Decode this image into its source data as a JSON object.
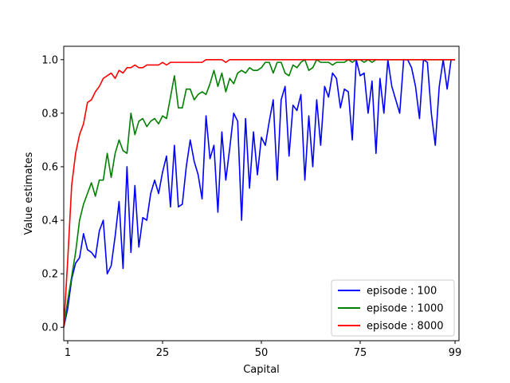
{
  "chart_data": {
    "type": "line",
    "title": "",
    "xlabel": "Capital",
    "ylabel": "Value estimates",
    "xlim": [
      0,
      100
    ],
    "ylim": [
      -0.05,
      1.05
    ],
    "xticks": [
      1,
      25,
      50,
      75,
      99
    ],
    "yticks": [
      0.0,
      0.2,
      0.4,
      0.6,
      0.8,
      1.0
    ],
    "ytick_labels": [
      "0.0",
      "0.2",
      "0.4",
      "0.6",
      "0.8",
      "1.0"
    ],
    "grid": false,
    "legend": "bottom-right",
    "series": [
      {
        "name": "episode : 100",
        "color": "#0000ff",
        "x": [
          0,
          1,
          2,
          3,
          4,
          5,
          6,
          7,
          8,
          9,
          10,
          11,
          12,
          13,
          14,
          15,
          16,
          17,
          18,
          19,
          20,
          21,
          22,
          23,
          24,
          25,
          26,
          27,
          28,
          29,
          30,
          31,
          32,
          33,
          34,
          35,
          36,
          37,
          38,
          39,
          40,
          41,
          42,
          43,
          44,
          45,
          46,
          47,
          48,
          49,
          50,
          51,
          52,
          53,
          54,
          55,
          56,
          57,
          58,
          59,
          60,
          61,
          62,
          63,
          64,
          65,
          66,
          67,
          68,
          69,
          70,
          71,
          72,
          73,
          74,
          75,
          76,
          77,
          78,
          79,
          80,
          81,
          82,
          83,
          84,
          85,
          86,
          87,
          88,
          89,
          90,
          91,
          92,
          93,
          94,
          95,
          96,
          97,
          98,
          99
        ],
        "y": [
          0.0,
          0.07,
          0.18,
          0.24,
          0.26,
          0.35,
          0.29,
          0.28,
          0.26,
          0.36,
          0.4,
          0.2,
          0.23,
          0.34,
          0.47,
          0.22,
          0.6,
          0.28,
          0.53,
          0.3,
          0.41,
          0.4,
          0.5,
          0.55,
          0.5,
          0.58,
          0.64,
          0.45,
          0.68,
          0.45,
          0.46,
          0.6,
          0.7,
          0.62,
          0.57,
          0.48,
          0.79,
          0.63,
          0.68,
          0.43,
          0.73,
          0.55,
          0.67,
          0.8,
          0.77,
          0.4,
          0.78,
          0.52,
          0.73,
          0.57,
          0.71,
          0.68,
          0.77,
          0.85,
          0.55,
          0.85,
          0.9,
          0.64,
          0.83,
          0.81,
          0.87,
          0.55,
          0.79,
          0.6,
          0.85,
          0.68,
          0.9,
          0.86,
          0.95,
          0.93,
          0.82,
          0.89,
          0.88,
          0.7,
          1.0,
          0.94,
          0.95,
          0.8,
          0.92,
          0.65,
          0.93,
          0.8,
          1.0,
          0.9,
          0.85,
          0.8,
          1.0,
          1.0,
          0.97,
          0.9,
          0.78,
          1.0,
          0.99,
          0.8,
          0.68,
          0.9,
          1.0,
          0.89,
          1.0,
          1.0
        ]
      },
      {
        "name": "episode : 1000",
        "color": "#008000",
        "x": [
          0,
          1,
          2,
          3,
          4,
          5,
          6,
          7,
          8,
          9,
          10,
          11,
          12,
          13,
          14,
          15,
          16,
          17,
          18,
          19,
          20,
          21,
          22,
          23,
          24,
          25,
          26,
          27,
          28,
          29,
          30,
          31,
          32,
          33,
          34,
          35,
          36,
          37,
          38,
          39,
          40,
          41,
          42,
          43,
          44,
          45,
          46,
          47,
          48,
          49,
          50,
          51,
          52,
          53,
          54,
          55,
          56,
          57,
          58,
          59,
          60,
          61,
          62,
          63,
          64,
          65,
          66,
          67,
          68,
          69,
          70,
          71,
          72,
          73,
          74,
          75,
          76,
          77,
          78,
          79,
          80,
          81,
          82,
          83,
          84,
          85,
          86,
          87,
          88,
          89,
          90,
          91,
          92,
          93,
          94,
          95,
          96,
          97,
          98,
          99
        ],
        "y": [
          0.0,
          0.1,
          0.19,
          0.28,
          0.4,
          0.46,
          0.5,
          0.54,
          0.49,
          0.55,
          0.55,
          0.65,
          0.56,
          0.65,
          0.7,
          0.66,
          0.65,
          0.8,
          0.72,
          0.77,
          0.78,
          0.75,
          0.77,
          0.78,
          0.76,
          0.79,
          0.78,
          0.86,
          0.94,
          0.82,
          0.82,
          0.89,
          0.89,
          0.85,
          0.87,
          0.88,
          0.87,
          0.91,
          0.96,
          0.9,
          0.95,
          0.88,
          0.93,
          0.91,
          0.95,
          0.96,
          0.95,
          0.97,
          0.96,
          0.96,
          0.97,
          0.99,
          0.99,
          0.95,
          0.99,
          0.99,
          0.95,
          0.94,
          0.98,
          0.97,
          0.99,
          1.0,
          0.96,
          0.97,
          1.0,
          0.99,
          0.99,
          0.99,
          0.98,
          0.99,
          0.99,
          0.99,
          1.0,
          0.99,
          1.0,
          1.0,
          0.99,
          1.0,
          0.99,
          1.0,
          1.0,
          1.0,
          1.0,
          1.0,
          1.0,
          1.0,
          1.0,
          1.0,
          1.0,
          1.0,
          1.0,
          1.0,
          1.0,
          1.0,
          1.0,
          1.0,
          1.0,
          1.0,
          1.0,
          1.0
        ]
      },
      {
        "name": "episode : 8000",
        "color": "#ff0000",
        "x": [
          0,
          1,
          2,
          3,
          4,
          5,
          6,
          7,
          8,
          9,
          10,
          11,
          12,
          13,
          14,
          15,
          16,
          17,
          18,
          19,
          20,
          21,
          22,
          23,
          24,
          25,
          26,
          27,
          28,
          29,
          30,
          31,
          32,
          33,
          34,
          35,
          36,
          37,
          38,
          39,
          40,
          41,
          42,
          43,
          44,
          45,
          46,
          47,
          48,
          49,
          50,
          51,
          52,
          53,
          54,
          55,
          56,
          57,
          58,
          59,
          60,
          61,
          62,
          63,
          64,
          65,
          66,
          67,
          68,
          69,
          70,
          71,
          72,
          73,
          74,
          75,
          76,
          77,
          78,
          79,
          80,
          81,
          82,
          83,
          84,
          85,
          86,
          87,
          88,
          89,
          90,
          91,
          92,
          93,
          94,
          95,
          96,
          97,
          98,
          99
        ],
        "y": [
          0.0,
          0.25,
          0.53,
          0.65,
          0.72,
          0.76,
          0.84,
          0.85,
          0.88,
          0.9,
          0.93,
          0.94,
          0.95,
          0.93,
          0.96,
          0.95,
          0.97,
          0.97,
          0.98,
          0.97,
          0.97,
          0.98,
          0.98,
          0.98,
          0.98,
          0.99,
          0.98,
          0.99,
          0.99,
          0.99,
          0.99,
          0.99,
          0.99,
          0.99,
          0.99,
          0.99,
          1.0,
          1.0,
          1.0,
          1.0,
          1.0,
          0.99,
          1.0,
          1.0,
          1.0,
          1.0,
          1.0,
          1.0,
          1.0,
          1.0,
          1.0,
          1.0,
          1.0,
          1.0,
          1.0,
          1.0,
          1.0,
          1.0,
          1.0,
          1.0,
          1.0,
          1.0,
          1.0,
          1.0,
          1.0,
          1.0,
          1.0,
          1.0,
          1.0,
          1.0,
          1.0,
          1.0,
          1.0,
          1.0,
          1.0,
          1.0,
          1.0,
          1.0,
          1.0,
          1.0,
          1.0,
          1.0,
          1.0,
          1.0,
          1.0,
          1.0,
          1.0,
          1.0,
          1.0,
          1.0,
          1.0,
          1.0,
          1.0,
          1.0,
          1.0,
          1.0,
          1.0,
          1.0,
          1.0,
          1.0
        ]
      }
    ]
  }
}
